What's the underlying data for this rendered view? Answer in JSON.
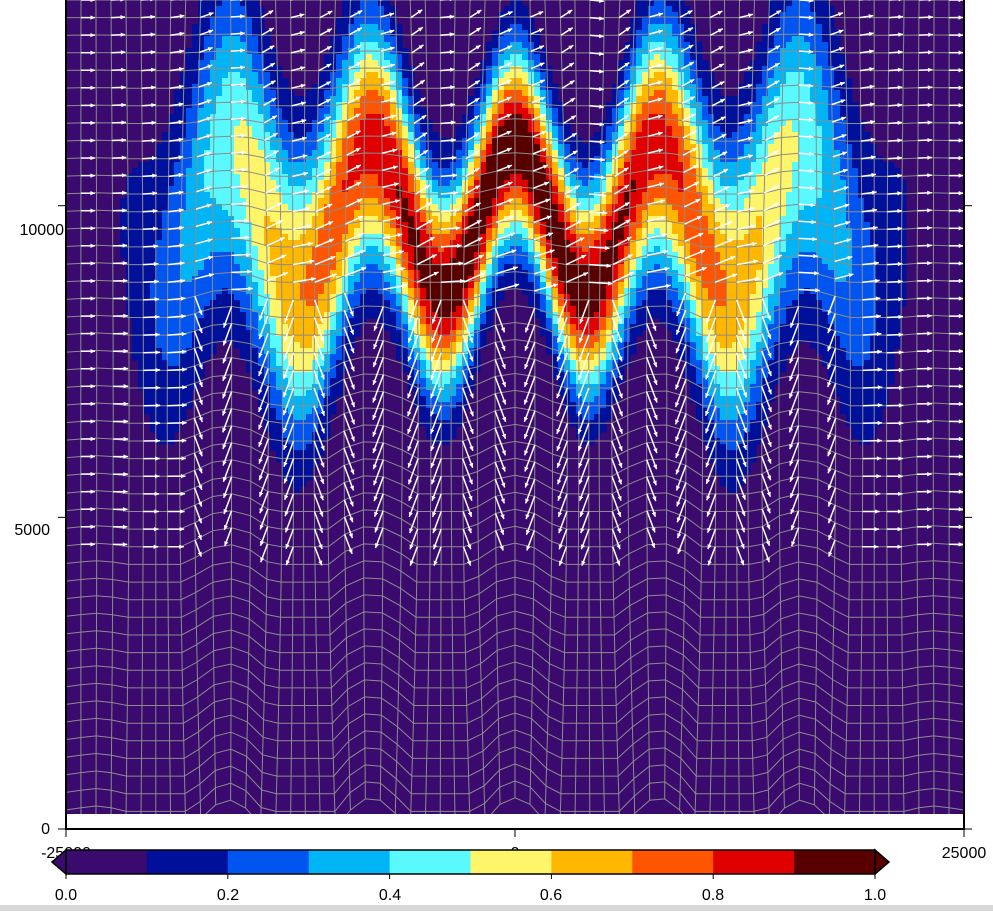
{
  "chart_data": {
    "type": "heatmap",
    "title": "",
    "xlabel": "",
    "ylabel": "",
    "xlim": [
      -25000,
      25000
    ],
    "ylim": [
      0,
      13300
    ],
    "x_ticks": [
      {
        "value": -25000,
        "label": "-25000"
      },
      {
        "value": 0,
        "label": "0"
      },
      {
        "value": 25000,
        "label": "25000"
      }
    ],
    "y_ticks": [
      {
        "value": 0,
        "label": "0"
      },
      {
        "value": 5000,
        "label": "5000"
      },
      {
        "value": 10000,
        "label": "10000"
      }
    ],
    "background_color": "#3a0a6e",
    "mesh_color": "#8c8c8c",
    "vector_color": "#ffffff",
    "field": {
      "description_free": true,
      "center_y": 9800,
      "wave_amplitude": 1200,
      "wave_period": 8000,
      "peak_value": 1.0,
      "x_halfwidth": 20000
    },
    "colorbar": {
      "orientation": "horizontal",
      "range": [
        0.0,
        1.0
      ],
      "extend": "both",
      "bins": [
        {
          "from": 0.0,
          "to": 0.1,
          "color": "#3a0a6e"
        },
        {
          "from": 0.1,
          "to": 0.2,
          "color": "#00109a"
        },
        {
          "from": 0.2,
          "to": 0.3,
          "color": "#0055f0"
        },
        {
          "from": 0.3,
          "to": 0.4,
          "color": "#00b4f5"
        },
        {
          "from": 0.4,
          "to": 0.5,
          "color": "#5af8ff"
        },
        {
          "from": 0.5,
          "to": 0.6,
          "color": "#fff56a"
        },
        {
          "from": 0.6,
          "to": 0.7,
          "color": "#ffb700"
        },
        {
          "from": 0.7,
          "to": 0.8,
          "color": "#ff5400"
        },
        {
          "from": 0.8,
          "to": 0.9,
          "color": "#e00000"
        },
        {
          "from": 0.9,
          "to": 1.0,
          "color": "#580000"
        }
      ],
      "tick_labels": [
        "0.0",
        "0.2",
        "0.4",
        "0.6",
        "0.8",
        "1.0"
      ]
    }
  }
}
